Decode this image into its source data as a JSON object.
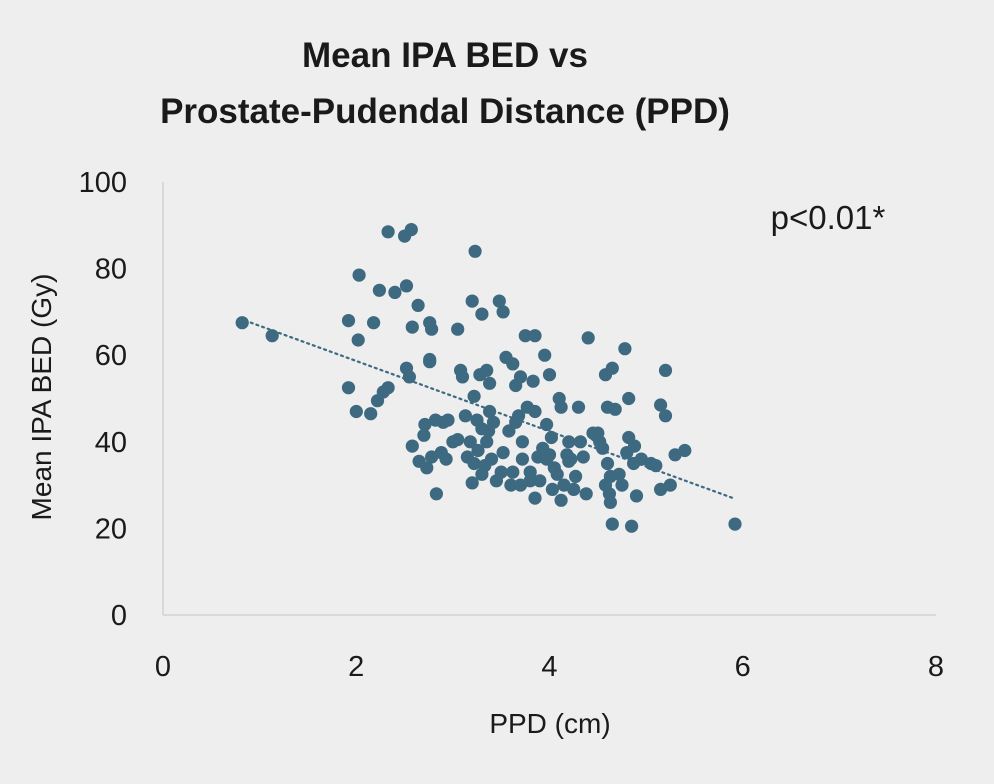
{
  "chart_data": {
    "type": "scatter",
    "title_lines": [
      "Mean IPA BED vs",
      "Prostate-Pudendal Distance (PPD)"
    ],
    "xlabel": "PPD (cm)",
    "ylabel": "Mean IPA BED (Gy)",
    "annotation": "p<0.01*",
    "xlim": [
      0,
      8
    ],
    "ylim": [
      0,
      100
    ],
    "xticks": [
      "0",
      "2",
      "4",
      "6",
      "8"
    ],
    "yticks": [
      "0",
      "20",
      "40",
      "60",
      "80",
      "100"
    ],
    "grid": false,
    "legend": "none",
    "colors": {
      "point": "#3d6a80",
      "trendline": "#3d6a80",
      "axis": "#d2d2d2",
      "text": "#1a1a1a"
    },
    "trendline": {
      "style": "dotted",
      "x": [
        0.85,
        5.9
      ],
      "y": [
        68,
        27
      ]
    },
    "points": [
      [
        0.82,
        67.5
      ],
      [
        1.13,
        64.5
      ],
      [
        1.92,
        52.5
      ],
      [
        1.92,
        68
      ],
      [
        2.0,
        47
      ],
      [
        2.03,
        78.5
      ],
      [
        2.02,
        63.5
      ],
      [
        2.15,
        46.5
      ],
      [
        2.18,
        67.5
      ],
      [
        2.22,
        49.5
      ],
      [
        2.24,
        75
      ],
      [
        2.28,
        51.5
      ],
      [
        2.33,
        52.5
      ],
      [
        2.33,
        88.5
      ],
      [
        2.4,
        74.5
      ],
      [
        2.5,
        87.5
      ],
      [
        2.52,
        76
      ],
      [
        2.52,
        57
      ],
      [
        2.55,
        55
      ],
      [
        2.57,
        89
      ],
      [
        2.58,
        66.5
      ],
      [
        2.58,
        39
      ],
      [
        2.64,
        71.5
      ],
      [
        2.65,
        35.5
      ],
      [
        2.7,
        41.5
      ],
      [
        2.71,
        44
      ],
      [
        2.73,
        34
      ],
      [
        2.76,
        67.5
      ],
      [
        2.76,
        59
      ],
      [
        2.76,
        58.5
      ],
      [
        2.78,
        66
      ],
      [
        2.78,
        36.5
      ],
      [
        2.82,
        45
      ],
      [
        2.83,
        28
      ],
      [
        2.88,
        37.5
      ],
      [
        2.9,
        44.5
      ],
      [
        2.93,
        36
      ],
      [
        2.95,
        45
      ],
      [
        3.0,
        40
      ],
      [
        3.05,
        40.5
      ],
      [
        3.05,
        66
      ],
      [
        3.08,
        56.5
      ],
      [
        3.1,
        55
      ],
      [
        3.13,
        46
      ],
      [
        3.15,
        36.5
      ],
      [
        3.18,
        40
      ],
      [
        3.2,
        72.5
      ],
      [
        3.2,
        30.5
      ],
      [
        3.22,
        35
      ],
      [
        3.22,
        50.5
      ],
      [
        3.23,
        84
      ],
      [
        3.25,
        45
      ],
      [
        3.26,
        38
      ],
      [
        3.28,
        55.5
      ],
      [
        3.3,
        32.5
      ],
      [
        3.3,
        43
      ],
      [
        3.3,
        69.5
      ],
      [
        3.33,
        34.5
      ],
      [
        3.35,
        56.5
      ],
      [
        3.35,
        40
      ],
      [
        3.37,
        42.5
      ],
      [
        3.38,
        47
      ],
      [
        3.38,
        53.5
      ],
      [
        3.4,
        36
      ],
      [
        3.42,
        44.5
      ],
      [
        3.45,
        31
      ],
      [
        3.48,
        72.5
      ],
      [
        3.5,
        33
      ],
      [
        3.52,
        70
      ],
      [
        3.52,
        37.5
      ],
      [
        3.55,
        59.5
      ],
      [
        3.58,
        42.5
      ],
      [
        3.6,
        30
      ],
      [
        3.62,
        33
      ],
      [
        3.62,
        58
      ],
      [
        3.65,
        44.5
      ],
      [
        3.65,
        53
      ],
      [
        3.68,
        46
      ],
      [
        3.7,
        30
      ],
      [
        3.7,
        55
      ],
      [
        3.72,
        40
      ],
      [
        3.72,
        36
      ],
      [
        3.75,
        64.5
      ],
      [
        3.77,
        48
      ],
      [
        3.8,
        33
      ],
      [
        3.8,
        31
      ],
      [
        3.83,
        54
      ],
      [
        3.85,
        47
      ],
      [
        3.85,
        64.5
      ],
      [
        3.85,
        27
      ],
      [
        3.88,
        36.5
      ],
      [
        3.9,
        31
      ],
      [
        3.93,
        38.5
      ],
      [
        3.95,
        60
      ],
      [
        3.97,
        36
      ],
      [
        3.97,
        44
      ],
      [
        4.0,
        37
      ],
      [
        4.0,
        55.5
      ],
      [
        4.02,
        41
      ],
      [
        4.03,
        29
      ],
      [
        4.05,
        34
      ],
      [
        4.08,
        32.5
      ],
      [
        4.1,
        50
      ],
      [
        4.12,
        26.5
      ],
      [
        4.12,
        48
      ],
      [
        4.15,
        30
      ],
      [
        4.18,
        37
      ],
      [
        4.2,
        35.5
      ],
      [
        4.2,
        40
      ],
      [
        4.22,
        36
      ],
      [
        4.25,
        29
      ],
      [
        4.27,
        32
      ],
      [
        4.3,
        48
      ],
      [
        4.32,
        40
      ],
      [
        4.35,
        36.5
      ],
      [
        4.38,
        28
      ],
      [
        4.4,
        64
      ],
      [
        4.45,
        42
      ],
      [
        4.48,
        41.5
      ],
      [
        4.5,
        42
      ],
      [
        4.52,
        40
      ],
      [
        4.55,
        38.5
      ],
      [
        4.58,
        30
      ],
      [
        4.58,
        55.5
      ],
      [
        4.6,
        35
      ],
      [
        4.6,
        48
      ],
      [
        4.62,
        28
      ],
      [
        4.63,
        32
      ],
      [
        4.63,
        26
      ],
      [
        4.65,
        21
      ],
      [
        4.65,
        57
      ],
      [
        4.68,
        47.5
      ],
      [
        4.72,
        32.5
      ],
      [
        4.75,
        30
      ],
      [
        4.78,
        61.5
      ],
      [
        4.8,
        37.5
      ],
      [
        4.82,
        50
      ],
      [
        4.82,
        41
      ],
      [
        4.85,
        20.5
      ],
      [
        4.87,
        35
      ],
      [
        4.88,
        39
      ],
      [
        4.9,
        27.5
      ],
      [
        4.95,
        36
      ],
      [
        5.05,
        35
      ],
      [
        5.1,
        34.5
      ],
      [
        5.15,
        48.5
      ],
      [
        5.15,
        29
      ],
      [
        5.2,
        56.5
      ],
      [
        5.2,
        46
      ],
      [
        5.25,
        30
      ],
      [
        5.3,
        37
      ],
      [
        5.4,
        38
      ],
      [
        5.92,
        21
      ]
    ]
  }
}
